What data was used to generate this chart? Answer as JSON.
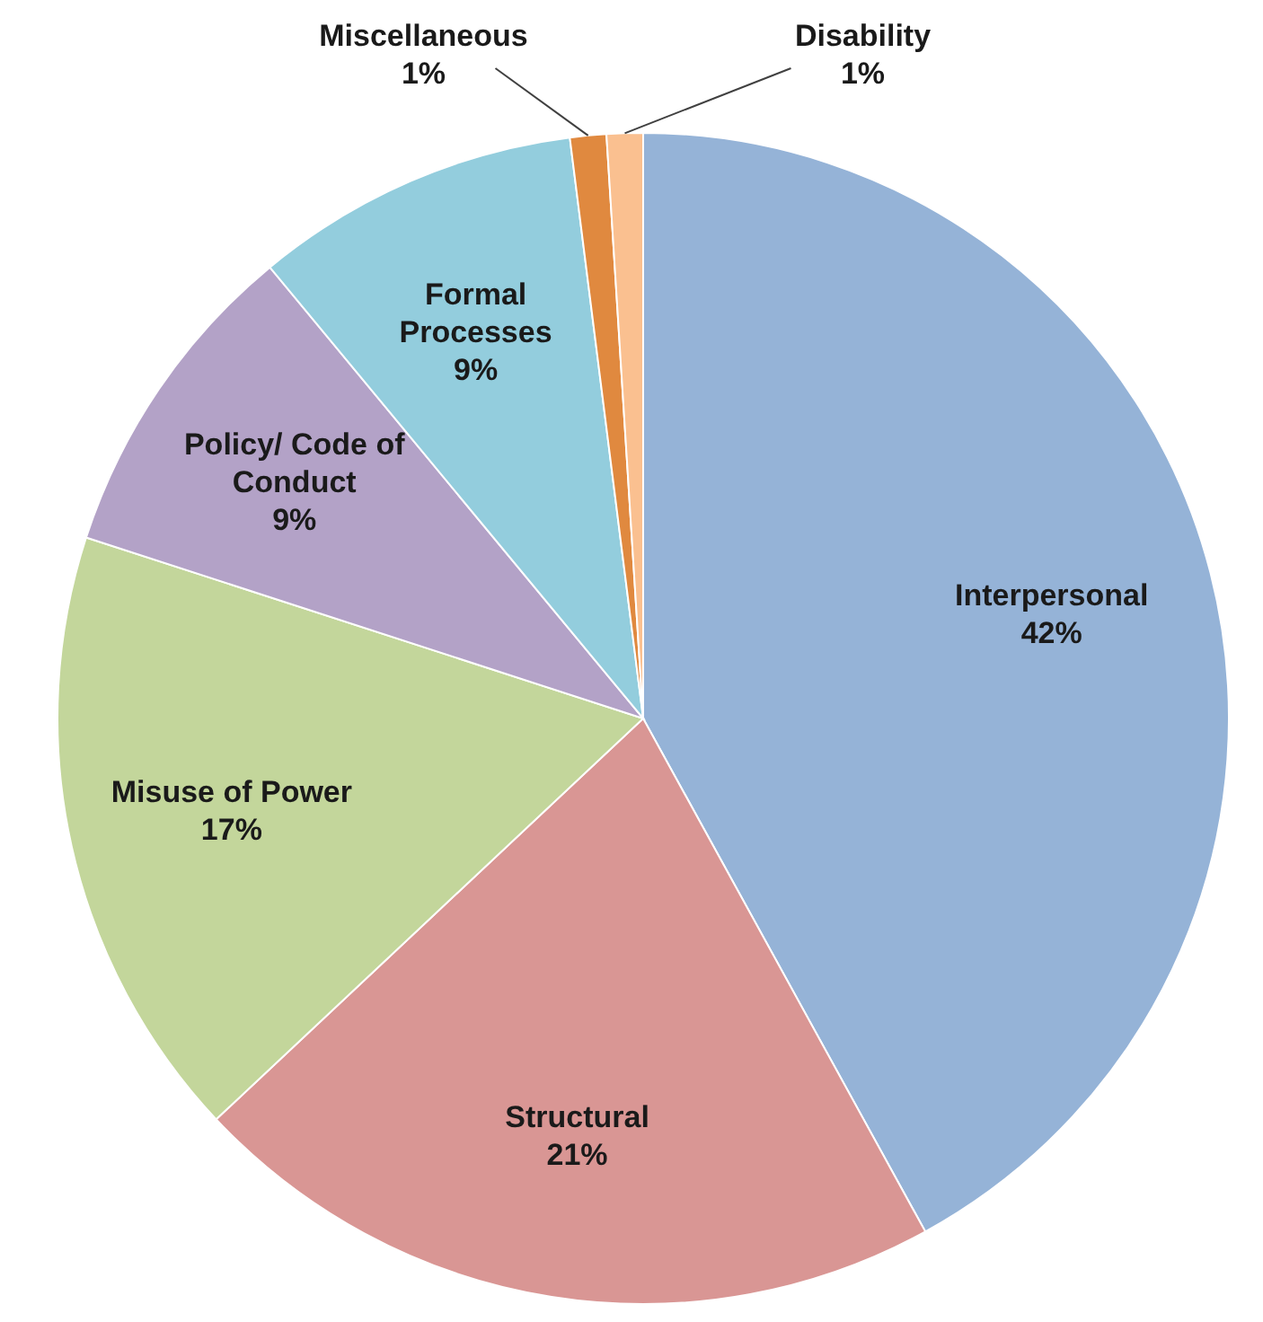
{
  "chart_data": {
    "type": "pie",
    "categories": [
      "Interpersonal",
      "Structural",
      "Misuse of Power",
      "Policy/ Code of Conduct",
      "Formal Processes",
      "Miscellaneous",
      "Disability"
    ],
    "values": [
      42,
      21,
      17,
      9,
      9,
      1,
      1
    ],
    "colors": [
      "#95b3d7",
      "#d99694",
      "#c3d69b",
      "#b3a2c7",
      "#93cddd",
      "#e0893f",
      "#fac090"
    ],
    "value_labels": [
      "42%",
      "21%",
      "17%",
      "9%",
      "9%",
      "1%",
      "1%"
    ]
  }
}
